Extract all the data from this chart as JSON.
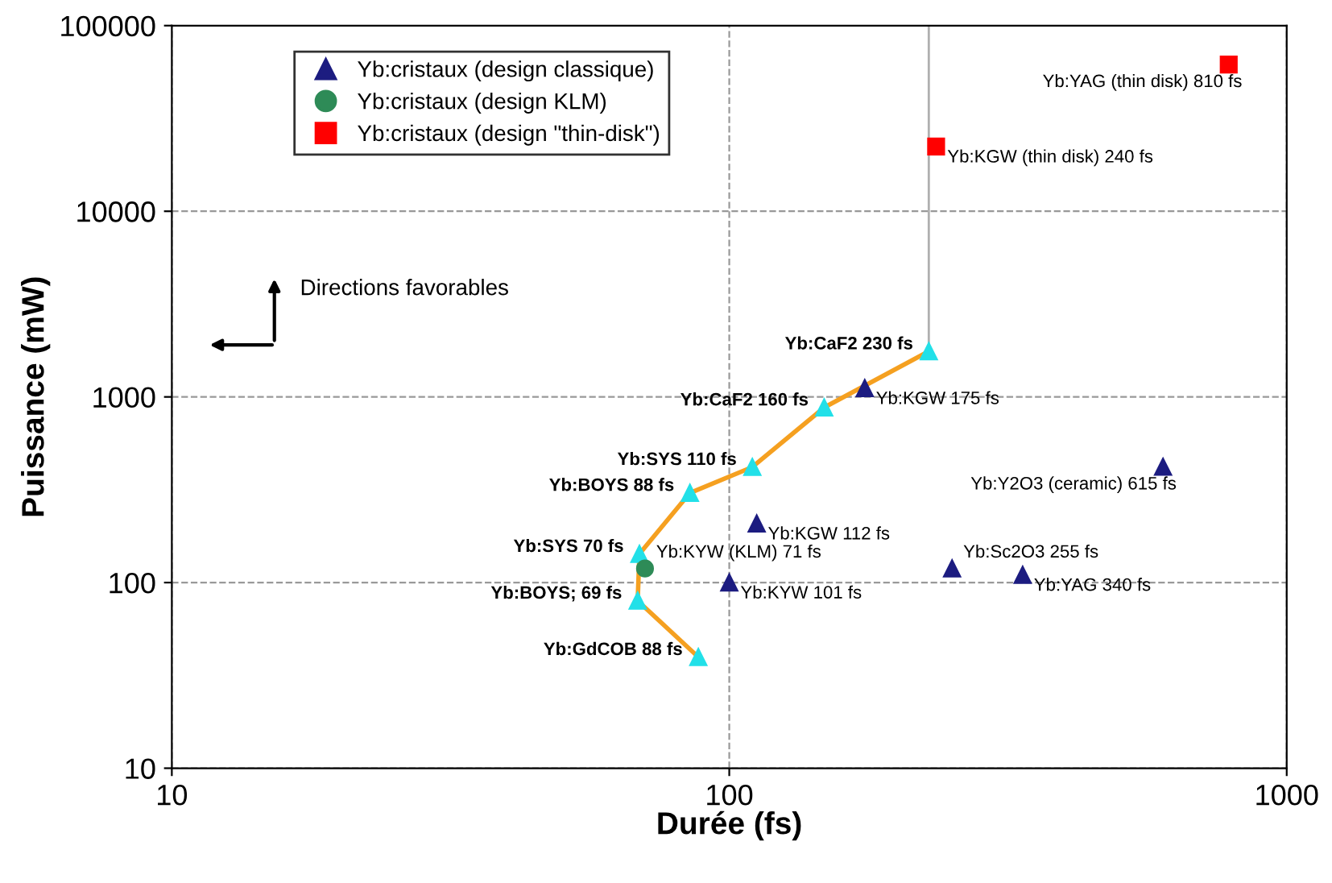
{
  "chart_data": {
    "type": "scatter",
    "xlabel": "Durée (fs)",
    "ylabel": "Puissance (mW)",
    "log": "xy",
    "xlim": [
      10,
      1000
    ],
    "xticks": [
      10,
      100,
      1000
    ],
    "ylim": [
      10,
      100000
    ],
    "yticks": [
      10,
      100,
      1000,
      10000,
      100000
    ],
    "grid": true,
    "legend": "top left",
    "series": [
      {
        "type": "line",
        "color": "#b0b0b0",
        "marker": "none",
        "x": [
          228,
          228
        ],
        "values": [
          1760,
          100000
        ]
      },
      {
        "type": "line",
        "color": "#f5a020",
        "marker": "none",
        "x": [
          88,
          68.5,
          69,
          85,
          110,
          148,
          228
        ],
        "values": [
          39.7,
          79.8,
          142.6,
          304,
          419,
          877,
          1760
        ]
      },
      {
        "color": "#22e0e8",
        "marker": "triangle",
        "x": [
          228,
          148,
          110,
          85,
          69,
          68.5,
          88
        ],
        "values": [
          1760,
          877,
          419,
          304,
          142.6,
          79.8,
          39.7
        ]
      },
      {
        "name": "Yb:cristaux (design classique)",
        "color": "#1c1c80",
        "marker": "triangle",
        "x": [
          175,
          112,
          100,
          251,
          336,
          600
        ],
        "values": [
          1114,
          208,
          100,
          119,
          110,
          420
        ]
      },
      {
        "name": "Yb:cristaux (design KLM)",
        "color": "#2e8b57",
        "marker": "circle",
        "x": [
          70.6
        ],
        "values": [
          119
        ]
      },
      {
        "name": "Yb:cristaux (design \"thin-disk\")",
        "color": "#ff0000",
        "marker": "square",
        "x": [
          235,
          787
        ],
        "values": [
          22300,
          61700
        ]
      }
    ],
    "annotations": [
      {
        "text": "Yb:CaF2 230 fs",
        "x": 228,
        "y": 1760
      },
      {
        "text": "Yb:CaF2 160 fs",
        "x": 148,
        "y": 877
      },
      {
        "text": "Yb:SYS 110 fs",
        "x": 110,
        "y": 419
      },
      {
        "text": "Yb:BOYS 88 fs",
        "x": 85,
        "y": 304
      },
      {
        "text": "Yb:SYS 70 fs",
        "x": 69,
        "y": 142.6
      },
      {
        "text": "Yb:BOYS; 69 fs",
        "x": 68.5,
        "y": 79.8
      },
      {
        "text": "Yb:GdCOB 88 fs",
        "x": 88,
        "y": 39.7
      },
      {
        "text": "Yb:KYW (KLM) 71 fs",
        "x": 70.6,
        "y": 119
      },
      {
        "text": "Yb:KGW 175 fs",
        "x": 175,
        "y": 1114
      },
      {
        "text": "Yb:KGW 112 fs",
        "x": 112,
        "y": 208
      },
      {
        "text": "Yb:KYW 101 fs",
        "x": 100,
        "y": 100
      },
      {
        "text": "Yb:Sc2O3 255 fs",
        "x": 251,
        "y": 119
      },
      {
        "text": "Yb:YAG 340 fs",
        "x": 336,
        "y": 110
      },
      {
        "text": "Yb:Y2O3 (ceramic) 615 fs",
        "x": 600,
        "y": 420
      },
      {
        "text": "Yb:KGW (thin disk) 240 fs",
        "x": 235,
        "y": 22300
      },
      {
        "text": "Yb:YAG (thin disk) 810 fs",
        "x": 787,
        "y": 61700
      },
      "Directions favorables"
    ]
  }
}
